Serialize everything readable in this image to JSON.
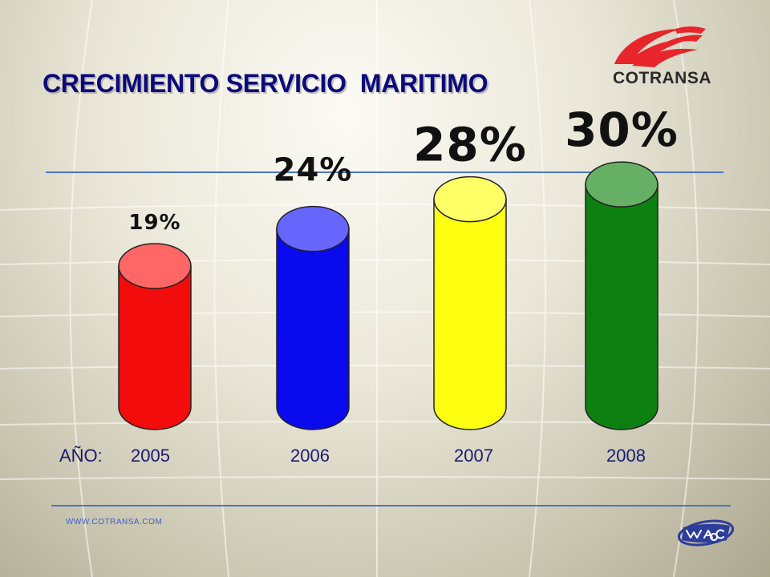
{
  "title": "CRECIMIENTO SERVICIO  MARITIMO",
  "logo": {
    "name": "COTRANSA",
    "accent": "#e8252a",
    "text_color": "#2a2a2a"
  },
  "colors": {
    "title": "#0c0a7a",
    "rule": "#4a76c0",
    "year_text": "#1b1b6e",
    "website": "#3a5fd0"
  },
  "chart_data": {
    "type": "bar",
    "style": "3d-cylinder",
    "title": "CRECIMIENTO SERVICIO  MARITIMO",
    "category_prefix": "AÑO:",
    "categories": [
      "2005",
      "2006",
      "2007",
      "2008"
    ],
    "values": [
      19,
      24,
      28,
      30
    ],
    "value_labels": [
      "19%",
      "24%",
      "28%",
      "30%"
    ],
    "colors": [
      "#f20c0c",
      "#0a0aee",
      "#ffff12",
      "#0e8012"
    ],
    "top_colors": [
      "#ff6666",
      "#6666ff",
      "#ffff66",
      "#66b066"
    ],
    "label_colors": [
      "#111111",
      "#111111",
      "#111111",
      "#111111"
    ],
    "grid": false,
    "legend": "none"
  },
  "footer": {
    "website": "WWW.COTRANSA.COM",
    "partner_logo": "waco"
  }
}
